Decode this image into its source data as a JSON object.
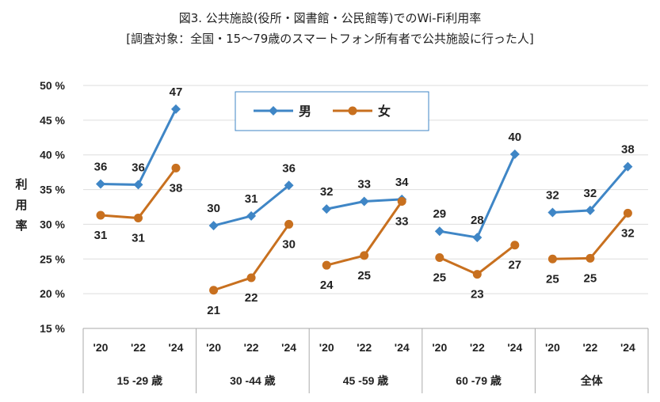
{
  "chart_data": {
    "type": "line",
    "title": "図3. 公共施設(役所・図書館・公民館等)でのWi-Fi利用率",
    "subtitle": "[調査対象：全国・15～79歳のスマートフォン所有者で公共施設に行った人]",
    "ylabel": "利用率",
    "ylim": [
      15,
      50
    ],
    "yticks": [
      "15 %",
      "20 %",
      "25 %",
      "30 %",
      "35 %",
      "40 %",
      "45 %",
      "50 %"
    ],
    "grid": true,
    "legend_position": "top-center",
    "groups": [
      "15 -29 歳",
      "30 -44 歳",
      "45 -59 歳",
      "60 -79 歳",
      "全体"
    ],
    "categories": [
      "'20",
      "'22",
      "'24"
    ],
    "series": [
      {
        "name": "男",
        "color": "#3f86c6",
        "marker": "diamond",
        "values": [
          [
            35.8,
            35.7,
            46.6
          ],
          [
            29.8,
            31.2,
            35.6
          ],
          [
            32.2,
            33.3,
            33.6
          ],
          [
            29.0,
            28.1,
            40.1
          ],
          [
            31.7,
            32.0,
            38.3
          ]
        ],
        "labels": [
          [
            "36",
            "36",
            "47"
          ],
          [
            "30",
            "31",
            "36"
          ],
          [
            "32",
            "33",
            "34"
          ],
          [
            "29",
            "28",
            "40"
          ],
          [
            "32",
            "32",
            "38"
          ]
        ]
      },
      {
        "name": "女",
        "color": "#c8701f",
        "marker": "circle",
        "values": [
          [
            31.3,
            30.9,
            38.1
          ],
          [
            20.5,
            22.3,
            30.0
          ],
          [
            24.1,
            25.5,
            33.3
          ],
          [
            25.2,
            22.8,
            27.0
          ],
          [
            25.0,
            25.1,
            31.6
          ]
        ],
        "labels": [
          [
            "31",
            "31",
            "38"
          ],
          [
            "21",
            "22",
            "30"
          ],
          [
            "24",
            "25",
            "33"
          ],
          [
            "25",
            "23",
            "27"
          ],
          [
            "25",
            "25",
            "32"
          ]
        ]
      }
    ]
  }
}
